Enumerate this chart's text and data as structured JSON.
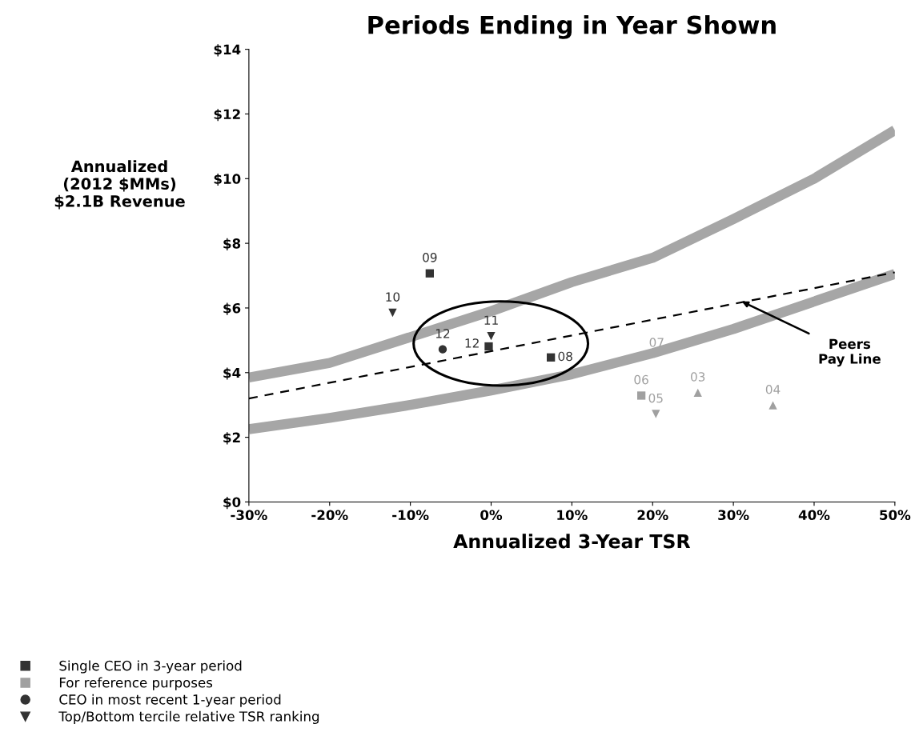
{
  "chart_data": {
    "type": "scatter",
    "title": "Periods Ending in Year Shown",
    "xlabel": "Annualized 3-Year TSR",
    "ylabel": "Annualized\n(2012 $MMs)\n$2.1B Revenue",
    "xlim": [
      -30,
      50
    ],
    "xticks": [
      {
        "value": -30,
        "label": "-30%"
      },
      {
        "value": -20,
        "label": "-20%"
      },
      {
        "value": -10,
        "label": "-10%"
      },
      {
        "value": 0,
        "label": "0%"
      },
      {
        "value": 10,
        "label": "10%"
      },
      {
        "value": 20,
        "label": "20%"
      },
      {
        "value": 30,
        "label": "30%"
      },
      {
        "value": 40,
        "label": "40%"
      },
      {
        "value": 50,
        "label": "50%"
      }
    ],
    "ylim": [
      0,
      14
    ],
    "yticks": [
      {
        "value": 0,
        "label": "$0"
      },
      {
        "value": 2,
        "label": "$2"
      },
      {
        "value": 4,
        "label": "$4"
      },
      {
        "value": 6,
        "label": "$6"
      },
      {
        "value": 8,
        "label": "$8"
      },
      {
        "value": 10,
        "label": "$10"
      },
      {
        "value": 12,
        "label": "$12"
      },
      {
        "value": 14,
        "label": "$14"
      }
    ],
    "grid": false,
    "legend": "bottom left",
    "series": [
      {
        "type": "line",
        "color": "#a6a6a6",
        "marker": "none",
        "line_style": "solid",
        "x": [
          -30,
          -20,
          -10,
          0,
          10,
          20,
          30,
          40,
          50
        ],
        "values": [
          3.85,
          4.3,
          5.1,
          5.9,
          6.8,
          7.55,
          8.75,
          10.0,
          11.5
        ]
      },
      {
        "type": "line",
        "color": "#a6a6a6",
        "marker": "none",
        "line_style": "solid",
        "x": [
          -30,
          -20,
          -10,
          0,
          10,
          20,
          30,
          40,
          50
        ],
        "values": [
          2.25,
          2.6,
          3.0,
          3.45,
          3.95,
          4.6,
          5.35,
          6.2,
          7.05
        ]
      },
      {
        "type": "line",
        "color": "#000000",
        "marker": "none",
        "line_style": "dashed",
        "x": [
          -30,
          50
        ],
        "values": [
          3.2,
          7.1
        ]
      },
      {
        "name": "Single CEO in 3-year period",
        "color": "#333333",
        "marker": "square",
        "x": [
          -7.6,
          -0.3,
          7.4
        ],
        "values": [
          7.07,
          4.81,
          4.47
        ]
      },
      {
        "name": "For reference purposes",
        "color": "#a0a0a0",
        "marker": "square",
        "x": [
          18.6
        ],
        "values": [
          3.29
        ]
      },
      {
        "name": "CEO in most recent 1-year period",
        "color": "#333333",
        "marker": "circle",
        "x": [
          -6.0
        ],
        "values": [
          4.72
        ]
      },
      {
        "name": "Top/Bottom tercile relative TSR ranking",
        "color": "#333333",
        "marker": "triangle_down",
        "x": [
          -12.2,
          0.0
        ],
        "values": [
          5.85,
          5.13
        ]
      },
      {
        "color": "#a0a0a0",
        "marker": "triangle_down",
        "x": [
          20.4
        ],
        "values": [
          2.72
        ]
      },
      {
        "color": "#a0a0a0",
        "marker": "triangle",
        "x": [
          25.6,
          34.9
        ],
        "values": [
          3.38,
          2.99
        ]
      }
    ],
    "annotations": [
      {
        "text": "09",
        "x": -7.6,
        "y": 7.07
      },
      {
        "text": "12",
        "x": -0.3,
        "y": 4.81
      },
      {
        "text": "08",
        "x": 7.4,
        "y": 4.47
      },
      {
        "text": "06",
        "x": 18.6,
        "y": 3.29
      },
      {
        "text": "12",
        "x": -6.0,
        "y": 4.72
      },
      {
        "text": "10",
        "x": -12.2,
        "y": 5.85
      },
      {
        "text": "11",
        "x": 0.0,
        "y": 5.13
      },
      {
        "text": "05",
        "x": 20.4,
        "y": 2.72
      },
      {
        "text": "03",
        "x": 25.6,
        "y": 3.38
      },
      {
        "text": "04",
        "x": 34.9,
        "y": 2.99
      },
      {
        "text": "07",
        "x": 20.5,
        "y": 4.9
      },
      "Peers\nPay Line"
    ]
  }
}
